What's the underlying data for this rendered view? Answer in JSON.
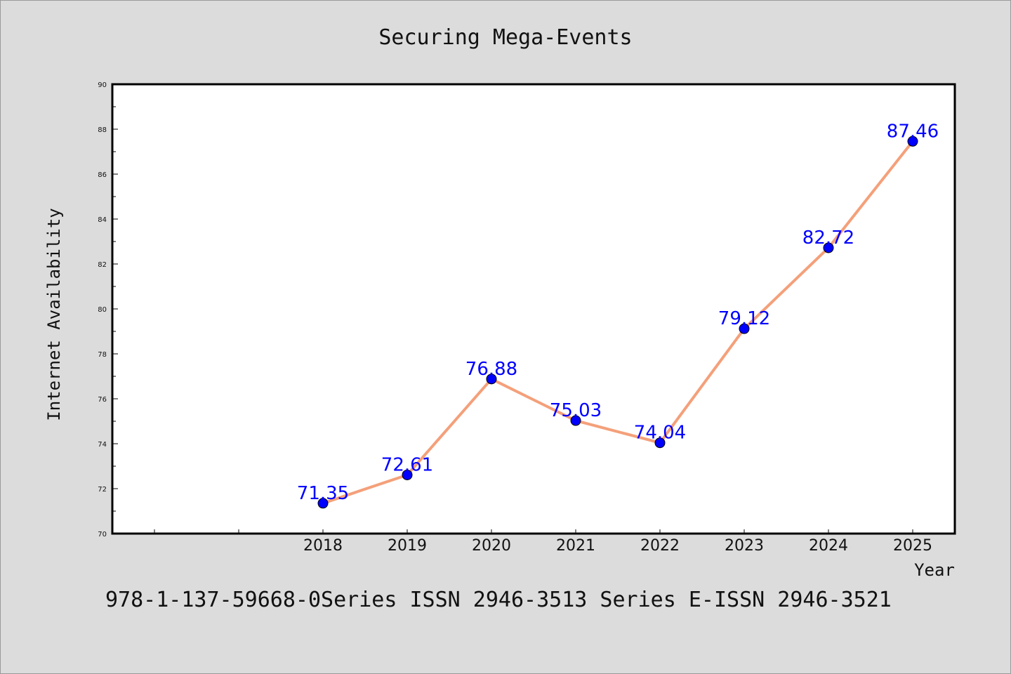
{
  "chart_data": {
    "type": "line",
    "title": "Securing Mega-Events",
    "xlabel": "Year",
    "ylabel": "Internet Availability",
    "categories": [
      "2018",
      "2019",
      "2020",
      "2021",
      "2022",
      "2023",
      "2024",
      "2025"
    ],
    "series": [
      {
        "values": [
          71.35,
          72.61,
          76.88,
          75.03,
          74.04,
          79.12,
          82.72,
          87.46
        ],
        "labels": [
          "71.35",
          "72.61",
          "76.88",
          "75.03",
          "74.04",
          "79.12",
          "82.72",
          "87.46"
        ],
        "line_color": "#f4a07a",
        "marker_color": "#0000ff"
      }
    ],
    "ylim": [
      70,
      90
    ],
    "yticks": [
      70,
      72,
      74,
      76,
      78,
      80,
      82,
      84,
      86,
      88,
      90
    ],
    "ytick_labels": [
      "70",
      "72",
      "74",
      "76",
      "78",
      "80",
      "82",
      "84",
      "86",
      "88",
      "90"
    ],
    "grid": false,
    "legend": "none"
  },
  "footer": {
    "text": "978-1-137-59668-0Series ISSN 2946-3513 Series E-ISSN 2946-3521"
  },
  "colors": {
    "background": "#dcdcdc",
    "plot_background": "#ffffff",
    "line": "#f4a07a",
    "marker": "#0000ff",
    "data_label": "#0000ff"
  }
}
